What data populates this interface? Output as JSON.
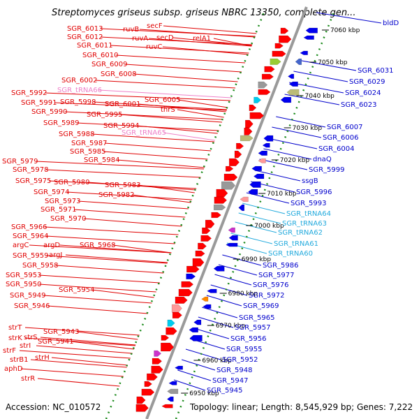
{
  "title": "Streptomyces griseus subsp. griseus NBRC 13350, complete gen...",
  "footer": {
    "accession": "Accession: NC_010572",
    "topology": "Topology: linear; Length: 8,545,929 bp; Genes: 7,222"
  },
  "colors": {
    "left_label": "#e00000",
    "trna_left": "#ee80c8",
    "right_label": "#0000cc",
    "trna_right": "#22aadd",
    "backbone": "#9a9a9a",
    "tick": "#1a8a1a"
  },
  "scale": {
    "unit": "kbp",
    "ticks": [
      "6950 kbp",
      "6960 kbp",
      "6970 kbp",
      "6980 kbp",
      "6990 kbp",
      "7000 kbp",
      "7010 kbp",
      "7020 kbp",
      "7030 kbp",
      "7040 kbp",
      "7050 kbp",
      "7060 kbp"
    ]
  },
  "left_genes": [
    "SGR_6013",
    "ruvB",
    "secF",
    "SGR_6012",
    "ruvA",
    "secD",
    "SGR_6011",
    "ruvC",
    "relA1",
    "SGR_6010",
    "SGR_6009",
    "SGR_6008",
    "SGR_6002",
    "SGR_tRNA66",
    "SGR_5992",
    "SGR_6005",
    "SGR_5991",
    "SGR_5998",
    "SGR_6001",
    "thrS",
    "SGR_5990",
    "SGR_5995",
    "SGR_5989",
    "SGR_5994",
    "SGR_tRNA65",
    "SGR_5988",
    "SGR_5987",
    "SGR_5985",
    "SGR_5984",
    "SGR_5979",
    "SGR_5978",
    "SGR_5975",
    "SGR_5980",
    "SGR_5983",
    "SGR_5974",
    "SGR_5982",
    "SGR_5973",
    "SGR_5971",
    "SGR_5970",
    "SGR_5966",
    "SGR_5964",
    "argC",
    "argD",
    "SGR_5968",
    "SGR_5959",
    "argJ",
    "SGR_5958",
    "SGR_5953",
    "SGR_5950",
    "SGR_5954",
    "SGR_5949",
    "SGR_5946",
    "strT",
    "SGR_5943",
    "strK",
    "strS",
    "strI",
    "SGR_5941",
    "strF",
    "strB1",
    "strH",
    "aphD",
    "strR"
  ],
  "right_genes": [
    "bldD",
    "SGR_6031",
    "SGR_6029",
    "SGR_6024",
    "SGR_6023",
    "SGR_6007",
    "SGR_6006",
    "SGR_6004",
    "dnaQ",
    "SGR_5999",
    "ssgB",
    "SGR_5996",
    "SGR_5993",
    "SGR_tRNA64",
    "SGR_tRNA63",
    "SGR_tRNA62",
    "SGR_tRNA61",
    "SGR_tRNA60",
    "SGR_5986",
    "SGR_5977",
    "SGR_5976",
    "SGR_5972",
    "SGR_5969",
    "SGR_5965",
    "SGR_5957",
    "SGR_5956",
    "SGR_5955",
    "SGR_5952",
    "SGR_5948",
    "SGR_5947",
    "SGR_5945"
  ]
}
